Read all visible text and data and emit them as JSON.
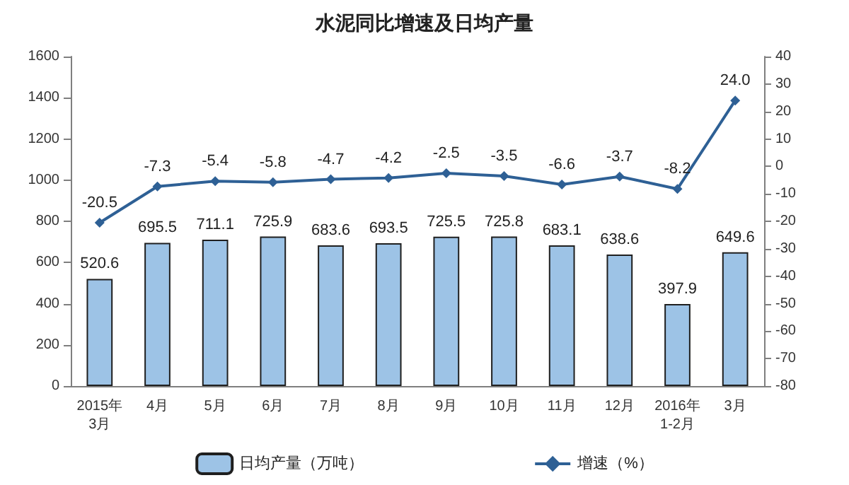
{
  "chart_data": {
    "type": "bar",
    "title": "水泥同比增速及日均产量",
    "categories": [
      "2015年\n3月",
      "4月",
      "5月",
      "6月",
      "7月",
      "8月",
      "9月",
      "10月",
      "11月",
      "12月",
      "2016年\n1-2月",
      "3月"
    ],
    "series": [
      {
        "name": "日均产量（万吨）",
        "color": "#9dc3e6",
        "values": [
          520.6,
          695.5,
          711.1,
          725.9,
          683.6,
          693.5,
          725.5,
          725.8,
          683.1,
          638.6,
          397.9,
          649.6
        ]
      },
      {
        "name": "增速（%）",
        "type": "line",
        "axis": "y2",
        "color": "#2e6095",
        "values": [
          -20.5,
          -7.3,
          -5.4,
          -5.8,
          -4.7,
          -4.2,
          -2.5,
          -3.5,
          -6.6,
          -3.7,
          -8.2,
          24.0
        ],
        "value_labels": [
          "-20.5",
          "-7.3",
          "-5.4",
          "-5.8",
          "-4.7",
          "-4.2",
          "-2.5",
          "-3.5",
          "-6.6",
          "-3.7",
          "-8.2",
          "24.0"
        ]
      }
    ],
    "ylim": [
      0,
      1600
    ],
    "yticks": [
      0,
      200,
      400,
      600,
      800,
      1000,
      1200,
      1400,
      1600
    ],
    "y2lim": [
      -80,
      40
    ],
    "y2ticks": [
      -80,
      -70,
      -60,
      -50,
      -40,
      -30,
      -20,
      -10,
      0,
      10,
      20,
      30,
      40
    ],
    "data_labels": true,
    "grid": false,
    "legend": "bottom",
    "marker": "diamond",
    "line_style": "solid"
  }
}
